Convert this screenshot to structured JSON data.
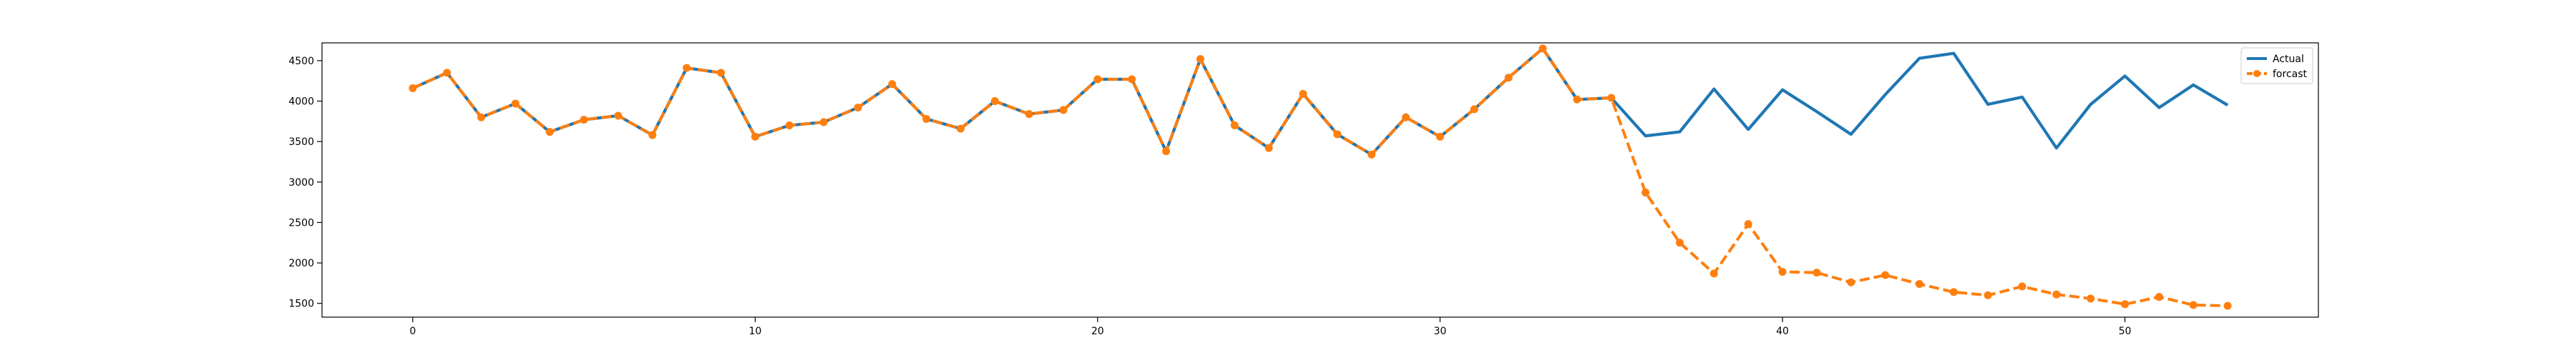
{
  "chart_data": {
    "type": "line",
    "title": "",
    "xlabel": "",
    "ylabel": "",
    "xlim": [
      -2.65,
      55.65
    ],
    "ylim": [
      1330,
      4720
    ],
    "x_ticks": [
      0,
      10,
      20,
      30,
      40,
      50
    ],
    "y_ticks": [
      1500,
      2000,
      2500,
      3000,
      3500,
      4000,
      4500
    ],
    "grid": false,
    "legend_position": "top-right",
    "series": [
      {
        "name": "Actual",
        "color": "#1f77b4",
        "style": "solid",
        "marker": "none",
        "x": [
          0,
          1,
          2,
          3,
          4,
          5,
          6,
          7,
          8,
          9,
          10,
          11,
          12,
          13,
          14,
          15,
          16,
          17,
          18,
          19,
          20,
          21,
          22,
          23,
          24,
          25,
          26,
          27,
          28,
          29,
          30,
          31,
          32,
          33,
          34,
          35,
          36,
          37,
          38,
          39,
          40,
          41,
          42,
          43,
          44,
          45,
          46,
          47,
          48,
          49,
          50,
          51,
          52,
          53
        ],
        "values": [
          4160,
          4350,
          3800,
          3970,
          3620,
          3770,
          3820,
          3580,
          4410,
          4350,
          3560,
          3700,
          3740,
          3920,
          4210,
          3780,
          3660,
          4000,
          3840,
          3890,
          4270,
          4270,
          3380,
          4520,
          3700,
          3420,
          4090,
          3590,
          3340,
          3800,
          3560,
          3900,
          4290,
          4650,
          4020,
          4040,
          3570,
          3620,
          4150,
          3650,
          4140,
          3870,
          3590,
          4080,
          4530,
          4590,
          3960,
          4050,
          3420,
          3960,
          4310,
          3920,
          4200,
          3950
        ]
      },
      {
        "name": "forcast",
        "color": "#ff7f0e",
        "style": "dashed",
        "marker": "circle",
        "x": [
          0,
          1,
          2,
          3,
          4,
          5,
          6,
          7,
          8,
          9,
          10,
          11,
          12,
          13,
          14,
          15,
          16,
          17,
          18,
          19,
          20,
          21,
          22,
          23,
          24,
          25,
          26,
          27,
          28,
          29,
          30,
          31,
          32,
          33,
          34,
          35,
          36,
          37,
          38,
          39,
          40,
          41,
          42,
          43,
          44,
          45,
          46,
          47,
          48,
          49,
          50,
          51,
          52,
          53
        ],
        "values": [
          4160,
          4350,
          3800,
          3970,
          3620,
          3770,
          3820,
          3580,
          4410,
          4350,
          3560,
          3700,
          3740,
          3920,
          4210,
          3780,
          3660,
          4000,
          3840,
          3890,
          4270,
          4270,
          3380,
          4520,
          3700,
          3420,
          4090,
          3590,
          3340,
          3800,
          3560,
          3900,
          4290,
          4650,
          4020,
          4040,
          2870,
          2250,
          1870,
          2480,
          1890,
          1880,
          1760,
          1850,
          1740,
          1640,
          1600,
          1710,
          1610,
          1560,
          1490,
          1580,
          1480,
          1470
        ]
      }
    ]
  }
}
